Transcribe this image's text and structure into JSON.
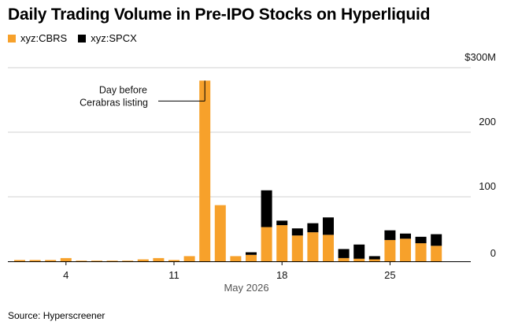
{
  "chart_data": {
    "type": "bar",
    "stacked": true,
    "title": "Daily Trading Volume in Pre-IPO Stocks on Hyperliquid",
    "source": "Source: Hyperscreener",
    "ylim": [
      0,
      300
    ],
    "y_ticks": [
      "0",
      "100",
      "200",
      "$300M"
    ],
    "y_tick_values": [
      0,
      100,
      200,
      300
    ],
    "x_tick_labels": [
      "4",
      "11",
      "18",
      "25"
    ],
    "x_tick_days": [
      4,
      11,
      18,
      25
    ],
    "month_label": "May 2026",
    "legend_position": "top-left",
    "grid": true,
    "days": [
      1,
      2,
      3,
      4,
      5,
      6,
      7,
      8,
      9,
      10,
      11,
      12,
      13,
      14,
      15,
      16,
      17,
      18,
      19,
      20,
      21,
      22,
      23,
      24,
      25,
      26,
      27,
      28
    ],
    "series": [
      {
        "name": "xyz:CBRS",
        "color": "#f7a12b",
        "values": [
          2,
          2,
          2,
          5,
          1,
          1,
          1,
          1,
          3,
          5,
          2,
          8,
          280,
          87,
          8,
          10,
          53,
          56,
          40,
          45,
          41,
          5,
          4,
          3,
          33,
          35,
          28,
          24
        ]
      },
      {
        "name": "xyz:SPCX",
        "color": "#000000",
        "values": [
          0,
          0,
          0,
          0,
          0,
          0,
          0,
          0,
          0,
          0,
          0,
          0,
          0,
          0,
          0,
          4,
          57,
          7,
          11,
          14,
          27,
          14,
          22,
          5,
          15,
          8,
          10,
          18
        ]
      }
    ],
    "annotation": {
      "line1": "Day before",
      "line2": "Cerabras listing",
      "day": 13
    }
  }
}
